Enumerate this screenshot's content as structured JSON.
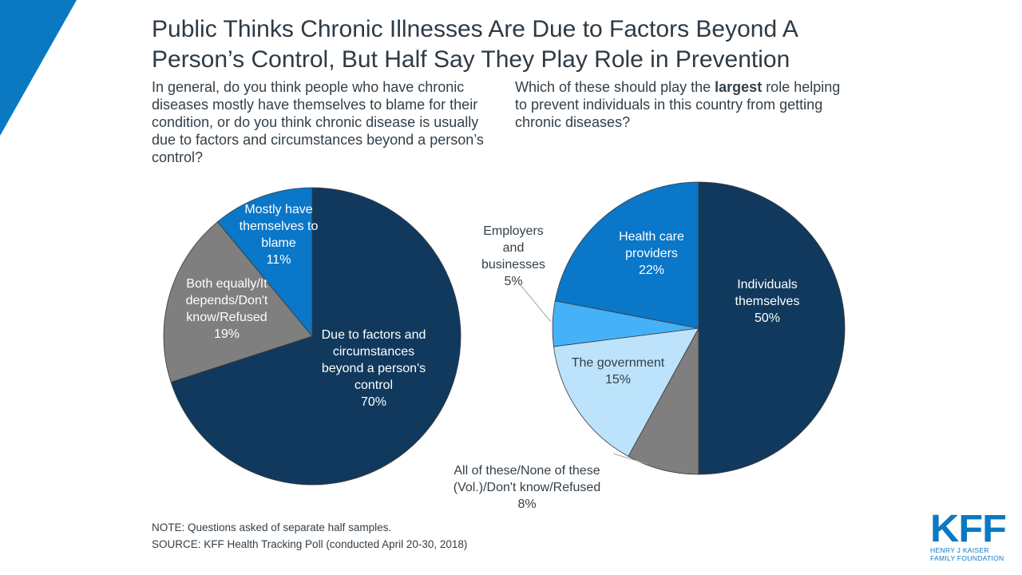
{
  "title": "Public Thinks Chronic Illnesses Are Due to Factors Beyond A Person’s Control, But Half Say They Play Role in Prevention",
  "title_lines": [
    "Public Thinks Chronic Illnesses Are Due to Factors Beyond A",
    "Person’s Control, But Half Say They Play Role in Prevention"
  ],
  "question_left": "In general, do you think people who have chronic diseases mostly have themselves to blame for their condition, or do you think chronic disease is usually due to factors and circumstances beyond a person’s control?",
  "question_right": {
    "before": "Which of these should play the ",
    "bold": "largest",
    "after": " role helping to prevent individuals in this country from getting chronic diseases?"
  },
  "colors": {
    "accent": "#0a79c2",
    "dark_navy": "#11395d",
    "gray": "#7f7f7f",
    "medium_blue": "#0a77c8",
    "light_blue": "#45b1f7",
    "pale_blue": "#bde3fc"
  },
  "chart_data": [
    {
      "type": "pie",
      "title": "In general, do you think people who have chronic diseases mostly have themselves to blame for their condition, or do you think chronic disease is usually due to factors and circumstances beyond a person’s control?",
      "start": "top",
      "direction": "clockwise",
      "slices": [
        {
          "label": "Due to factors and circumstances beyond a person's control",
          "label_lines": [
            "Due to factors and",
            "circumstances",
            "beyond a person's",
            "control",
            "70%"
          ],
          "value": 70,
          "color": "#11395d",
          "text_color": "#ffffff"
        },
        {
          "label": "Both equally/It depends/Don't know/Refused",
          "label_lines": [
            "Both equally/It",
            "depends/Don't",
            "know/Refused",
            "19%"
          ],
          "value": 19,
          "color": "#7f7f7f",
          "text_color": "#ffffff"
        },
        {
          "label": "Mostly have themselves to blame",
          "label_lines": [
            "Mostly have",
            "themselves to",
            "blame",
            "11%"
          ],
          "value": 11,
          "color": "#0a77c8",
          "text_color": "#ffffff"
        }
      ]
    },
    {
      "type": "pie",
      "title": "Which of these should play the largest role helping to prevent individuals in this country from getting chronic diseases?",
      "start": "top",
      "direction": "clockwise",
      "slices": [
        {
          "label": "Individuals themselves",
          "label_lines": [
            "Individuals",
            "themselves",
            "50%"
          ],
          "value": 50,
          "color": "#11395d",
          "text_color": "#ffffff"
        },
        {
          "label": "All of these/None of these (Vol.)/Don't know/Refused",
          "label_lines": [
            "All of these/None of these",
            "(Vol.)/Don't know/Refused",
            "8%"
          ],
          "value": 8,
          "color": "#7f7f7f",
          "text_color": "#333f48",
          "outside": true
        },
        {
          "label": "The government",
          "label_lines": [
            "The government",
            "15%"
          ],
          "value": 15,
          "color": "#bde3fc",
          "text_color": "#333f48"
        },
        {
          "label": "Employers and businesses",
          "label_lines": [
            "Employers",
            "and",
            "businesses",
            "5%"
          ],
          "value": 5,
          "color": "#45b1f7",
          "text_color": "#333f48",
          "outside": true
        },
        {
          "label": "Health care providers",
          "label_lines": [
            "Health care",
            "providers",
            "22%"
          ],
          "value": 22,
          "color": "#0a77c8",
          "text_color": "#ffffff"
        }
      ]
    }
  ],
  "footnotes": {
    "note": "NOTE: Questions asked of separate half samples.",
    "source": "SOURCE: KFF Health Tracking Poll (conducted April 20-30, 2018)"
  },
  "logo": {
    "main": "KFF",
    "sub_line1": "HENRY J KAISER",
    "sub_line2": "FAMILY FOUNDATION"
  }
}
